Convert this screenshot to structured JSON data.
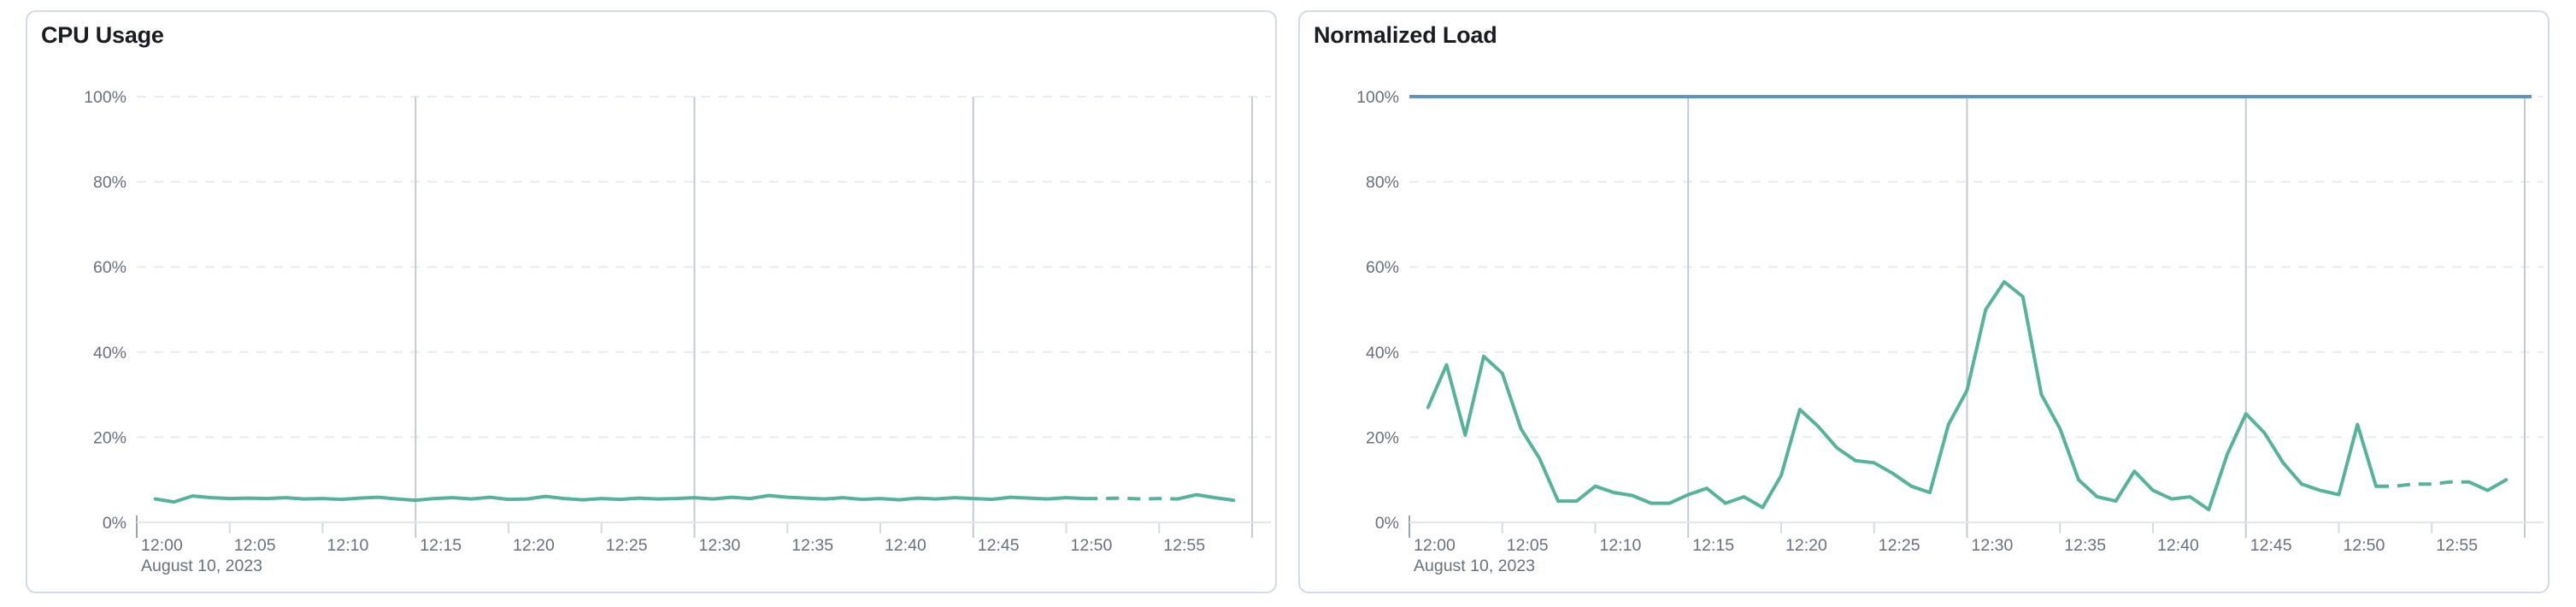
{
  "page": {
    "background": "#FFFFFF"
  },
  "chart_data": [
    {
      "type": "line",
      "title": "CPU Usage",
      "x_axis": {
        "tick_labels": [
          "12:00",
          "12:05",
          "12:10",
          "12:15",
          "12:20",
          "12:25",
          "12:30",
          "12:35",
          "12:40",
          "12:45",
          "12:50",
          "12:55"
        ],
        "date_label": "August 10, 2023",
        "domain_minutes": [
          0,
          60
        ],
        "tick_interval_minutes": 5,
        "major_gridline_minutes": [
          15,
          30,
          45,
          60
        ],
        "grid": "on"
      },
      "y_axis": {
        "tick_labels": [
          "0%",
          "20%",
          "40%",
          "60%",
          "80%",
          "100%"
        ],
        "tick_values": [
          0,
          20,
          40,
          60,
          80,
          100
        ],
        "ylim": [
          0,
          100
        ],
        "grid": "dashed"
      },
      "legend": "none",
      "series": [
        {
          "name": "CPU Usage",
          "color": "#54B399",
          "start_minute": 1,
          "minute_interval": 1,
          "values": [
            5.5,
            4.8,
            6.2,
            5.8,
            5.6,
            5.7,
            5.6,
            5.8,
            5.5,
            5.6,
            5.4,
            5.7,
            5.9,
            5.5,
            5.2,
            5.6,
            5.8,
            5.5,
            5.9,
            5.4,
            5.5,
            6.1,
            5.6,
            5.3,
            5.6,
            5.4,
            5.7,
            5.5,
            5.6,
            5.8,
            5.5,
            5.9,
            5.6,
            6.3,
            5.9,
            5.7,
            5.5,
            5.8,
            5.4,
            5.6,
            5.3,
            5.7,
            5.5,
            5.8,
            5.6,
            5.4,
            5.9,
            5.7,
            5.5,
            5.8,
            5.6,
            5.6,
            5.7,
            5.5,
            5.6,
            5.5,
            6.5,
            5.8,
            5.2
          ],
          "dashed_segment_minutes": [
            51,
            56
          ]
        }
      ],
      "limit_line": null
    },
    {
      "type": "line",
      "title": "Normalized Load",
      "x_axis": {
        "tick_labels": [
          "12:00",
          "12:05",
          "12:10",
          "12:15",
          "12:20",
          "12:25",
          "12:30",
          "12:35",
          "12:40",
          "12:45",
          "12:50",
          "12:55"
        ],
        "date_label": "August 10, 2023",
        "domain_minutes": [
          0,
          60
        ],
        "tick_interval_minutes": 5,
        "major_gridline_minutes": [
          15,
          30,
          45,
          60
        ],
        "grid": "on"
      },
      "y_axis": {
        "tick_labels": [
          "0%",
          "20%",
          "40%",
          "60%",
          "80%",
          "100%"
        ],
        "tick_values": [
          0,
          20,
          40,
          60,
          80,
          100
        ],
        "ylim": [
          0,
          100
        ],
        "grid": "dashed"
      },
      "legend": "none",
      "series": [
        {
          "name": "Normalized Load",
          "color": "#54B399",
          "start_minute": 1,
          "minute_interval": 1,
          "values": [
            27,
            37,
            20.5,
            39,
            35,
            22,
            15,
            5,
            5,
            8.5,
            7,
            6.3,
            4.5,
            4.5,
            6.5,
            8,
            4.5,
            6,
            3.5,
            11,
            26.5,
            22.5,
            17.5,
            14.5,
            14,
            11.5,
            8.5,
            7,
            23,
            31,
            50,
            56.5,
            53,
            30,
            22,
            10,
            6,
            5,
            12,
            7.5,
            5.5,
            6,
            3,
            16,
            25.5,
            21,
            14,
            9,
            7.5,
            6.5,
            23,
            8.5,
            8.5,
            9,
            9,
            9.5,
            9.5,
            7.5,
            10
          ],
          "dashed_segment_minutes": [
            52,
            57
          ]
        }
      ],
      "limit_line": {
        "value": 100,
        "color": "#6092C0"
      }
    }
  ]
}
